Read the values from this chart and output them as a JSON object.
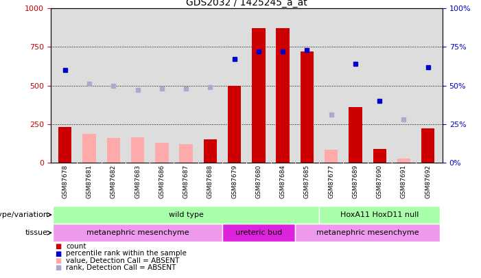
{
  "title": "GDS2032 / 1425245_a_at",
  "samples": [
    "GSM87678",
    "GSM87681",
    "GSM87682",
    "GSM87683",
    "GSM87686",
    "GSM87687",
    "GSM87688",
    "GSM87679",
    "GSM87680",
    "GSM87684",
    "GSM87685",
    "GSM87677",
    "GSM87689",
    "GSM87690",
    "GSM87691",
    "GSM87692"
  ],
  "count": [
    230,
    null,
    null,
    null,
    null,
    null,
    150,
    500,
    870,
    870,
    720,
    null,
    360,
    90,
    null,
    220
  ],
  "count_absent": [
    null,
    185,
    160,
    165,
    130,
    120,
    null,
    null,
    null,
    null,
    null,
    85,
    null,
    null,
    25,
    null
  ],
  "percentile_rank": [
    60,
    null,
    null,
    null,
    null,
    null,
    null,
    67,
    72,
    72,
    73,
    null,
    64,
    40,
    null,
    62
  ],
  "percentile_rank_absent": [
    null,
    51,
    50,
    47,
    48,
    48,
    49,
    null,
    null,
    null,
    null,
    31,
    null,
    null,
    28,
    null
  ],
  "ylim_left": [
    0,
    1000
  ],
  "ylim_right": [
    0,
    100
  ],
  "yticks_left": [
    0,
    250,
    500,
    750,
    1000
  ],
  "yticks_right": [
    0,
    25,
    50,
    75,
    100
  ],
  "bar_color_present": "#cc0000",
  "bar_color_absent": "#ffaaaa",
  "dot_color_present": "#0000cc",
  "dot_color_absent": "#aaaacc",
  "genotype_groups": [
    {
      "label": "wild type",
      "start": 0,
      "end": 10,
      "color": "#aaffaa"
    },
    {
      "label": "HoxA11 HoxD11 null",
      "start": 11,
      "end": 15,
      "color": "#aaffaa"
    }
  ],
  "tissue_groups": [
    {
      "label": "metanephric mesenchyme",
      "start": 0,
      "end": 6,
      "color": "#ee99ee"
    },
    {
      "label": "ureteric bud",
      "start": 7,
      "end": 9,
      "color": "#ee22ee"
    },
    {
      "label": "metanephric mesenchyme",
      "start": 10,
      "end": 15,
      "color": "#ee99ee"
    }
  ],
  "legend_items": [
    {
      "label": "count",
      "color": "#cc0000"
    },
    {
      "label": "percentile rank within the sample",
      "color": "#0000cc"
    },
    {
      "label": "value, Detection Call = ABSENT",
      "color": "#ffaaaa"
    },
    {
      "label": "rank, Detection Call = ABSENT",
      "color": "#aaaacc"
    }
  ],
  "genotype_label": "genotype/variation",
  "tissue_label": "tissue",
  "right_yaxis_color": "#0000cc",
  "left_yaxis_color": "#cc0000",
  "bg_color": "#dddddd",
  "xtick_bg": "#cccccc"
}
